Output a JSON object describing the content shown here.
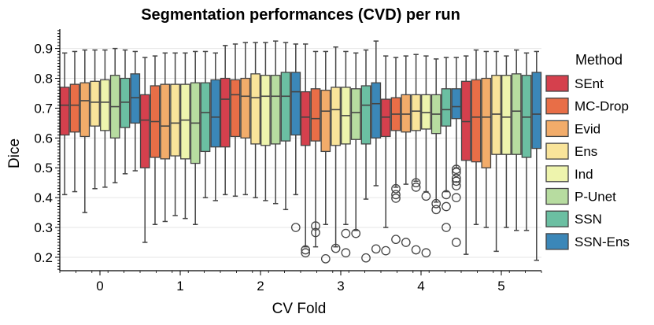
{
  "chart_data": {
    "type": "box",
    "title": "Segmentation performances (CVD) per run",
    "xlabel": "CV Fold",
    "ylabel": "Dice",
    "ylim": [
      0.155,
      0.965
    ],
    "yticks": [
      0.2,
      0.3,
      0.4,
      0.5,
      0.6,
      0.7,
      0.8,
      0.9
    ],
    "grid": "horizontal",
    "legend_title": "Method",
    "legend_position": "right",
    "categories": [
      "0",
      "1",
      "2",
      "3",
      "4",
      "5"
    ],
    "methods": [
      {
        "name": "SEnt",
        "color": "#d5404d"
      },
      {
        "name": "MC-Drop",
        "color": "#e86e47"
      },
      {
        "name": "Evid",
        "color": "#f2ac6a"
      },
      {
        "name": "Ens",
        "color": "#f9e49a"
      },
      {
        "name": "Ind",
        "color": "#eef4ad"
      },
      {
        "name": "P-Unet",
        "color": "#b7dca0"
      },
      {
        "name": "SSN",
        "color": "#6bbfa2"
      },
      {
        "name": "SSN-Ens",
        "color": "#3b87b8"
      }
    ],
    "series": [
      {
        "name": "SEnt",
        "boxes": [
          {
            "whislo": 0.41,
            "q1": 0.61,
            "med": 0.71,
            "q3": 0.77,
            "whishi": 0.885,
            "fliers": []
          },
          {
            "whislo": 0.25,
            "q1": 0.5,
            "med": 0.66,
            "q3": 0.745,
            "whishi": 0.87,
            "fliers": []
          },
          {
            "whislo": 0.41,
            "q1": 0.57,
            "med": 0.73,
            "q3": 0.8,
            "whishi": 0.91,
            "fliers": []
          },
          {
            "whislo": 0.235,
            "q1": 0.575,
            "med": 0.67,
            "q3": 0.755,
            "whishi": 0.915,
            "fliers": [
              0.225,
              0.215
            ]
          },
          {
            "whislo": 0.3,
            "q1": 0.605,
            "med": 0.67,
            "q3": 0.73,
            "whishi": 0.875,
            "fliers": [
              0.222
            ]
          },
          {
            "whislo": 0.21,
            "q1": 0.525,
            "med": 0.655,
            "q3": 0.79,
            "whishi": 0.875,
            "fliers": []
          }
        ]
      },
      {
        "name": "MC-Drop",
        "boxes": [
          {
            "whislo": 0.42,
            "q1": 0.62,
            "med": 0.71,
            "q3": 0.78,
            "whishi": 0.89,
            "fliers": []
          },
          {
            "whislo": 0.31,
            "q1": 0.535,
            "med": 0.655,
            "q3": 0.775,
            "whishi": 0.875,
            "fliers": []
          },
          {
            "whislo": 0.405,
            "q1": 0.605,
            "med": 0.745,
            "q3": 0.795,
            "whishi": 0.915,
            "fliers": []
          },
          {
            "whislo": 0.235,
            "q1": 0.59,
            "med": 0.665,
            "q3": 0.765,
            "whishi": 0.89,
            "fliers": [
              0.305,
              0.283
            ]
          },
          {
            "whislo": 0.435,
            "q1": 0.625,
            "med": 0.68,
            "q3": 0.735,
            "whishi": 0.87,
            "fliers": [
              0.43,
              0.41,
              0.398,
              0.26
            ]
          },
          {
            "whislo": 0.31,
            "q1": 0.52,
            "med": 0.67,
            "q3": 0.795,
            "whishi": 0.895,
            "fliers": []
          }
        ]
      },
      {
        "name": "Evid",
        "boxes": [
          {
            "whislo": 0.35,
            "q1": 0.605,
            "med": 0.725,
            "q3": 0.785,
            "whishi": 0.895,
            "fliers": []
          },
          {
            "whislo": 0.32,
            "q1": 0.53,
            "med": 0.64,
            "q3": 0.78,
            "whishi": 0.885,
            "fliers": []
          },
          {
            "whislo": 0.41,
            "q1": 0.6,
            "med": 0.74,
            "q3": 0.8,
            "whishi": 0.92,
            "fliers": []
          },
          {
            "whislo": 0.31,
            "q1": 0.555,
            "med": 0.69,
            "q3": 0.76,
            "whishi": 0.89,
            "fliers": [
              0.195
            ]
          },
          {
            "whislo": 0.445,
            "q1": 0.62,
            "med": 0.68,
            "q3": 0.745,
            "whishi": 0.875,
            "fliers": [
              0.25
            ]
          },
          {
            "whislo": 0.3,
            "q1": 0.5,
            "med": 0.67,
            "q3": 0.8,
            "whishi": 0.89,
            "fliers": []
          }
        ]
      },
      {
        "name": "Ens",
        "boxes": [
          {
            "whislo": 0.43,
            "q1": 0.64,
            "med": 0.72,
            "q3": 0.79,
            "whishi": 0.895,
            "fliers": []
          },
          {
            "whislo": 0.34,
            "q1": 0.54,
            "med": 0.65,
            "q3": 0.78,
            "whishi": 0.885,
            "fliers": []
          },
          {
            "whislo": 0.4,
            "q1": 0.58,
            "med": 0.735,
            "q3": 0.815,
            "whishi": 0.92,
            "fliers": []
          },
          {
            "whislo": 0.235,
            "q1": 0.575,
            "med": 0.695,
            "q3": 0.77,
            "whishi": 0.905,
            "fliers": [
              0.23
            ]
          },
          {
            "whislo": 0.455,
            "q1": 0.625,
            "med": 0.69,
            "q3": 0.745,
            "whishi": 0.88,
            "fliers": [
              0.45,
              0.435,
              0.225
            ]
          },
          {
            "whislo": 0.22,
            "q1": 0.545,
            "med": 0.68,
            "q3": 0.81,
            "whishi": 0.89,
            "fliers": []
          }
        ]
      },
      {
        "name": "Ind",
        "boxes": [
          {
            "whislo": 0.435,
            "q1": 0.625,
            "med": 0.72,
            "q3": 0.795,
            "whishi": 0.895,
            "fliers": []
          },
          {
            "whislo": 0.33,
            "q1": 0.53,
            "med": 0.66,
            "q3": 0.78,
            "whishi": 0.885,
            "fliers": []
          },
          {
            "whislo": 0.39,
            "q1": 0.575,
            "med": 0.74,
            "q3": 0.81,
            "whishi": 0.92,
            "fliers": []
          },
          {
            "whislo": 0.31,
            "q1": 0.58,
            "med": 0.675,
            "q3": 0.77,
            "whishi": 0.89,
            "fliers": [
              0.28,
              0.215
            ]
          },
          {
            "whislo": 0.42,
            "q1": 0.63,
            "med": 0.685,
            "q3": 0.745,
            "whishi": 0.875,
            "fliers": [
              0.405,
              0.215
            ]
          },
          {
            "whislo": 0.3,
            "q1": 0.545,
            "med": 0.67,
            "q3": 0.81,
            "whishi": 0.875,
            "fliers": []
          }
        ]
      },
      {
        "name": "P-Unet",
        "boxes": [
          {
            "whislo": 0.45,
            "q1": 0.6,
            "med": 0.705,
            "q3": 0.81,
            "whishi": 0.9,
            "fliers": []
          },
          {
            "whislo": 0.31,
            "q1": 0.515,
            "med": 0.65,
            "q3": 0.785,
            "whishi": 0.89,
            "fliers": []
          },
          {
            "whislo": 0.38,
            "q1": 0.58,
            "med": 0.74,
            "q3": 0.81,
            "whishi": 0.925,
            "fliers": []
          },
          {
            "whislo": 0.29,
            "q1": 0.595,
            "med": 0.685,
            "q3": 0.765,
            "whishi": 0.885,
            "fliers": [
              0.28
            ]
          },
          {
            "whislo": 0.385,
            "q1": 0.615,
            "med": 0.68,
            "q3": 0.745,
            "whishi": 0.865,
            "fliers": [
              0.38,
              0.36
            ]
          },
          {
            "whislo": 0.29,
            "q1": 0.545,
            "med": 0.69,
            "q3": 0.815,
            "whishi": 0.895,
            "fliers": []
          }
        ]
      },
      {
        "name": "SSN",
        "boxes": [
          {
            "whislo": 0.48,
            "q1": 0.635,
            "med": 0.72,
            "q3": 0.8,
            "whishi": 0.895,
            "fliers": []
          },
          {
            "whislo": 0.4,
            "q1": 0.555,
            "med": 0.685,
            "q3": 0.785,
            "whishi": 0.89,
            "fliers": []
          },
          {
            "whislo": 0.36,
            "q1": 0.59,
            "med": 0.74,
            "q3": 0.82,
            "whishi": 0.92,
            "fliers": []
          },
          {
            "whislo": 0.395,
            "q1": 0.58,
            "med": 0.71,
            "q3": 0.775,
            "whishi": 0.895,
            "fliers": [
              0.198
            ]
          },
          {
            "whislo": 0.42,
            "q1": 0.64,
            "med": 0.695,
            "q3": 0.765,
            "whishi": 0.87,
            "fliers": [
              0.41,
              0.37,
              0.3
            ]
          },
          {
            "whislo": 0.29,
            "q1": 0.535,
            "med": 0.67,
            "q3": 0.81,
            "whishi": 0.885,
            "fliers": []
          }
        ]
      },
      {
        "name": "SSN-Ens",
        "boxes": [
          {
            "whislo": 0.49,
            "q1": 0.65,
            "med": 0.735,
            "q3": 0.815,
            "whishi": 0.89,
            "fliers": []
          },
          {
            "whislo": 0.39,
            "q1": 0.57,
            "med": 0.67,
            "q3": 0.795,
            "whishi": 0.885,
            "fliers": []
          },
          {
            "whislo": 0.41,
            "q1": 0.61,
            "med": 0.755,
            "q3": 0.82,
            "whishi": 0.915,
            "fliers": [
              0.3
            ]
          },
          {
            "whislo": 0.44,
            "q1": 0.6,
            "med": 0.715,
            "q3": 0.785,
            "whishi": 0.925,
            "fliers": [
              0.228
            ]
          },
          {
            "whislo": 0.5,
            "q1": 0.665,
            "med": 0.705,
            "q3": 0.765,
            "whishi": 0.87,
            "fliers": [
              0.495,
              0.485,
              0.465,
              0.455,
              0.44,
              0.4,
              0.25
            ]
          },
          {
            "whislo": 0.19,
            "q1": 0.565,
            "med": 0.68,
            "q3": 0.82,
            "whishi": 0.89,
            "fliers": []
          }
        ]
      }
    ]
  }
}
